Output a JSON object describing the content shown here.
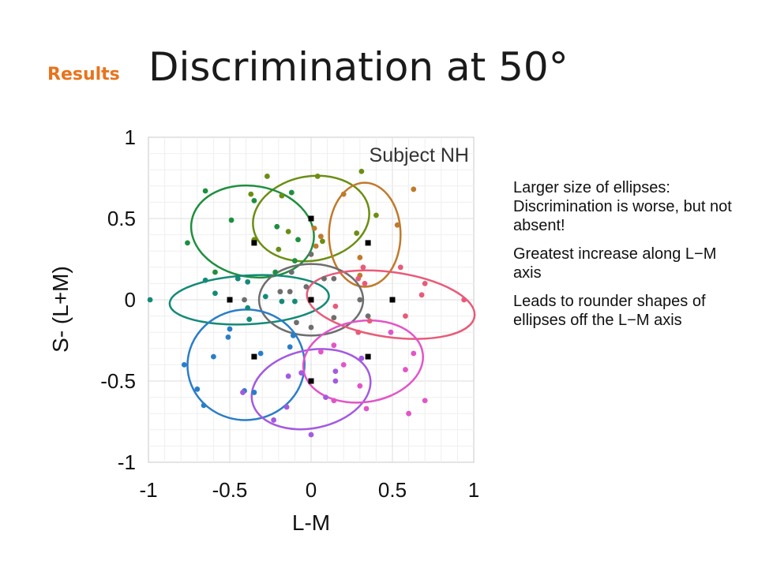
{
  "header": {
    "section_label": "Results",
    "title": "Discrimination at 50°"
  },
  "notes": [
    "Larger size of ellipses: Discrimination is worse, but not absent!",
    "Greatest increase along L−M axis",
    "Leads to rounder shapes of ellipses off the L−M axis"
  ],
  "chart_data": {
    "type": "scatter",
    "title": "Subject NH",
    "xlabel": "L-M",
    "ylabel": "S- (L+M)",
    "xlim": [
      -1,
      1
    ],
    "ylim": [
      -1,
      1
    ],
    "xticks": [
      "-1",
      "-0.5",
      "0",
      "0.5",
      "1"
    ],
    "yticks": [
      "1",
      "0.5",
      "0",
      "-0.5",
      "-1"
    ],
    "grid": true,
    "references": [
      {
        "x": 0.0,
        "y": 0.5
      },
      {
        "x": -0.35,
        "y": 0.35
      },
      {
        "x": 0.35,
        "y": 0.35
      },
      {
        "x": -0.5,
        "y": 0.0
      },
      {
        "x": 0.0,
        "y": 0.0
      },
      {
        "x": 0.5,
        "y": 0.0
      },
      {
        "x": -0.35,
        "y": -0.35
      },
      {
        "x": 0.35,
        "y": -0.35
      },
      {
        "x": 0.0,
        "y": -0.5
      }
    ],
    "series": [
      {
        "color": "#6b8e12",
        "ellipse": {
          "cx": 0.0,
          "cy": 0.5,
          "rx": 0.36,
          "ry": 0.26,
          "angle": 10
        },
        "points": [
          [
            -0.27,
            0.76
          ],
          [
            0.04,
            0.76
          ],
          [
            0.31,
            0.79
          ],
          [
            0.4,
            0.52
          ],
          [
            -0.14,
            0.42
          ],
          [
            -0.35,
            0.37
          ],
          [
            0.28,
            0.41
          ],
          [
            -0.18,
            0.64
          ],
          [
            -0.37,
            0.65
          ],
          [
            0.07,
            0.36
          ],
          [
            -0.2,
            0.31
          ]
        ]
      },
      {
        "color": "#1e8f3e",
        "ellipse": {
          "cx": -0.36,
          "cy": 0.42,
          "rx": 0.38,
          "ry": 0.28,
          "angle": -10
        },
        "points": [
          [
            -0.65,
            0.67
          ],
          [
            -0.76,
            0.35
          ],
          [
            -0.21,
            0.45
          ],
          [
            -0.59,
            0.17
          ],
          [
            -0.35,
            0.61
          ],
          [
            -0.22,
            0.17
          ],
          [
            -0.12,
            0.66
          ],
          [
            -0.08,
            0.37
          ],
          [
            -0.49,
            0.49
          ],
          [
            -0.1,
            0.24
          ]
        ]
      },
      {
        "color": "#c07a2b",
        "ellipse": {
          "cx": 0.33,
          "cy": 0.4,
          "rx": 0.32,
          "ry": 0.22,
          "angle": 90
        },
        "points": [
          [
            0.63,
            0.68
          ],
          [
            0.53,
            0.46
          ],
          [
            0.2,
            0.65
          ],
          [
            0.3,
            0.26
          ],
          [
            0.02,
            0.44
          ],
          [
            0.06,
            0.39
          ],
          [
            0.3,
            0.15
          ],
          [
            0.03,
            0.33
          ]
        ]
      },
      {
        "color": "#138a77",
        "ellipse": {
          "cx": -0.38,
          "cy": 0.0,
          "rx": 0.49,
          "ry": 0.15,
          "angle": 3
        },
        "points": [
          [
            -0.99,
            0.0
          ],
          [
            -0.45,
            0.13
          ],
          [
            -0.59,
            0.04
          ],
          [
            -0.38,
            -0.12
          ],
          [
            -0.39,
            0.11
          ],
          [
            -0.28,
            0.02
          ],
          [
            -0.1,
            -0.01
          ],
          [
            -0.18,
            -0.01
          ],
          [
            -0.65,
            0.12
          ],
          [
            -0.39,
            -0.05
          ]
        ]
      },
      {
        "color": "#6e6e6e",
        "ellipse": {
          "cx": 0.0,
          "cy": 0.0,
          "rx": 0.32,
          "ry": 0.22,
          "angle": 0
        },
        "points": [
          [
            -0.12,
            0.17
          ],
          [
            -0.13,
            0.05
          ],
          [
            0.0,
            0.28
          ],
          [
            -0.19,
            0.05
          ],
          [
            -0.09,
            -0.14
          ],
          [
            -0.03,
            0.08
          ],
          [
            0.0,
            -0.17
          ],
          [
            0.14,
            -0.11
          ],
          [
            0.14,
            0.13
          ],
          [
            0.08,
            0.13
          ],
          [
            0.3,
            0.0
          ],
          [
            -0.41,
            0.0
          ],
          [
            0.35,
            -0.1
          ]
        ]
      },
      {
        "color": "#e85b78",
        "ellipse": {
          "cx": 0.49,
          "cy": -0.03,
          "rx": 0.52,
          "ry": 0.2,
          "angle": -8
        },
        "points": [
          [
            0.94,
            0.0
          ],
          [
            0.58,
            -0.1
          ],
          [
            0.33,
            0.1
          ],
          [
            0.68,
            0.03
          ],
          [
            0.29,
            0.13
          ],
          [
            0.36,
            -0.13
          ],
          [
            0.55,
            0.2
          ],
          [
            0.7,
            0.1
          ],
          [
            0.15,
            -0.04
          ],
          [
            0.29,
            -0.2
          ],
          [
            0.32,
            0.2
          ]
        ]
      },
      {
        "color": "#2a7dc9",
        "ellipse": {
          "cx": -0.4,
          "cy": -0.4,
          "rx": 0.36,
          "ry": 0.34,
          "angle": 5
        },
        "points": [
          [
            -0.78,
            -0.4
          ],
          [
            -0.66,
            -0.65
          ],
          [
            -0.51,
            -0.23
          ],
          [
            -0.41,
            -0.56
          ],
          [
            -0.5,
            -0.18
          ],
          [
            -0.6,
            -0.35
          ],
          [
            -0.7,
            -0.55
          ],
          [
            -0.35,
            -0.57
          ],
          [
            -0.13,
            -0.29
          ],
          [
            -0.31,
            -0.33
          ],
          [
            -0.11,
            -0.22
          ]
        ]
      },
      {
        "color": "#a35ae0",
        "ellipse": {
          "cx": 0.0,
          "cy": -0.55,
          "rx": 0.37,
          "ry": 0.24,
          "angle": 12
        },
        "points": [
          [
            -0.23,
            -0.74
          ],
          [
            0.0,
            -0.83
          ],
          [
            -0.42,
            -0.57
          ],
          [
            0.15,
            -0.44
          ],
          [
            0.31,
            -0.36
          ],
          [
            -0.14,
            -0.47
          ],
          [
            -0.06,
            -0.45
          ],
          [
            0.15,
            -0.5
          ],
          [
            -0.15,
            -0.66
          ],
          [
            0.09,
            -0.6
          ]
        ]
      },
      {
        "color": "#e254c9",
        "ellipse": {
          "cx": 0.32,
          "cy": -0.38,
          "rx": 0.37,
          "ry": 0.25,
          "angle": 8
        },
        "points": [
          [
            0.14,
            -0.62
          ],
          [
            0.3,
            -0.53
          ],
          [
            0.58,
            -0.43
          ],
          [
            0.34,
            -0.67
          ],
          [
            0.6,
            -0.7
          ],
          [
            0.7,
            -0.62
          ],
          [
            0.49,
            -0.2
          ],
          [
            0.63,
            -0.33
          ],
          [
            0.06,
            -0.32
          ],
          [
            0.14,
            -0.28
          ],
          [
            0.2,
            -0.4
          ]
        ]
      }
    ]
  }
}
